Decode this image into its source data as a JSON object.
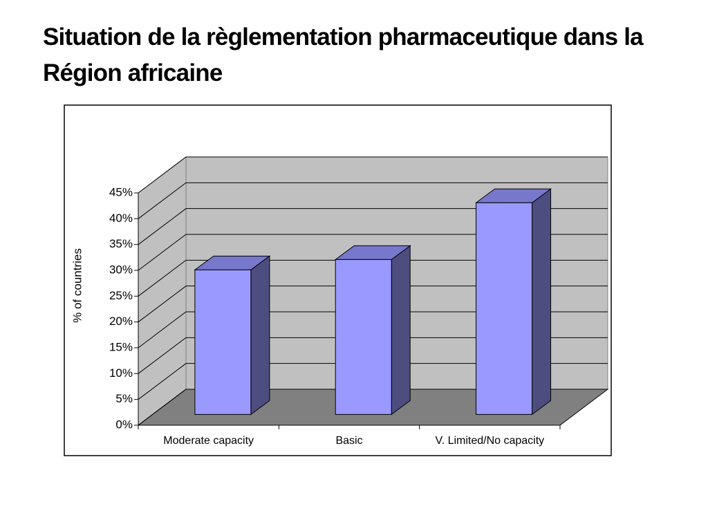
{
  "chart_data": {
    "type": "bar3d",
    "title": "Situation de la règlementation pharmaceutique dans la Région africaine",
    "y_label": "% of countries",
    "categories": [
      "Moderate capacity",
      "Basic",
      "V. Limited/No capacity"
    ],
    "values": [
      28,
      30,
      41
    ],
    "color": "#9999ff",
    "ylim": [
      0,
      45
    ],
    "yticks": [
      {
        "value": 0,
        "label": "0%"
      },
      {
        "value": 5,
        "label": "5%"
      },
      {
        "value": 10,
        "label": "10%"
      },
      {
        "value": 15,
        "label": "15%"
      },
      {
        "value": 20,
        "label": "20%"
      },
      {
        "value": 25,
        "label": "25%"
      },
      {
        "value": 30,
        "label": "30%"
      },
      {
        "value": 35,
        "label": "35%"
      },
      {
        "value": 40,
        "label": "40%"
      },
      {
        "value": 45,
        "label": "45%"
      }
    ],
    "grid": true
  }
}
